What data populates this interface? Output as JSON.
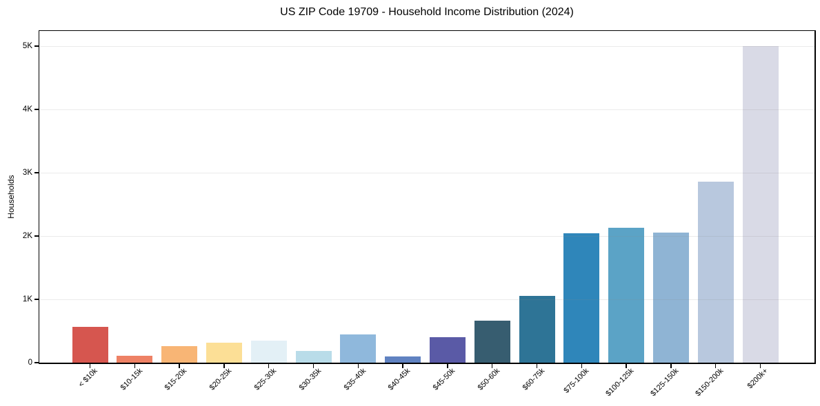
{
  "chart_data": {
    "type": "bar",
    "title": "US ZIP Code 19709 - Household Income Distribution (2024)",
    "xlabel": "",
    "ylabel": "Households",
    "ylim": [
      0,
      5240
    ],
    "grid": "horizontal",
    "grid_over_bars": true,
    "legend": "none",
    "x_tick_label_rotation_deg": 45,
    "categories": [
      "< $10k",
      "$10-15k",
      "$15-20k",
      "$20-25k",
      "$25-30k",
      "$30-35k",
      "$35-40k",
      "$40-45k",
      "$45-50k",
      "$50-60k",
      "$60-75k",
      "$75-100k",
      "$100-125k",
      "$125-150k",
      "$150-200k",
      "$200k+"
    ],
    "values": [
      570,
      110,
      265,
      315,
      350,
      185,
      450,
      100,
      405,
      665,
      1060,
      2040,
      2135,
      2050,
      2860,
      5000
    ],
    "bar_colors": [
      "#d6564f",
      "#ee8165",
      "#f8b575",
      "#fcdf96",
      "#e3f0f6",
      "#b9dce9",
      "#8fb8dc",
      "#6082c1",
      "#5a5aa6",
      "#375d70",
      "#2e7496",
      "#2f86ba",
      "#5ba3c6",
      "#8fb4d4",
      "#b8c8de",
      "#d9dae6"
    ],
    "yticks": {
      "values": [
        0,
        1000,
        2000,
        3000,
        4000,
        5000
      ],
      "labels": [
        "0",
        "1K",
        "2K",
        "3K",
        "4K",
        "5K"
      ]
    },
    "colors": {
      "axis": "#000000",
      "grid": "#eaeaea",
      "background": "#ffffff",
      "text": "#000000"
    }
  }
}
